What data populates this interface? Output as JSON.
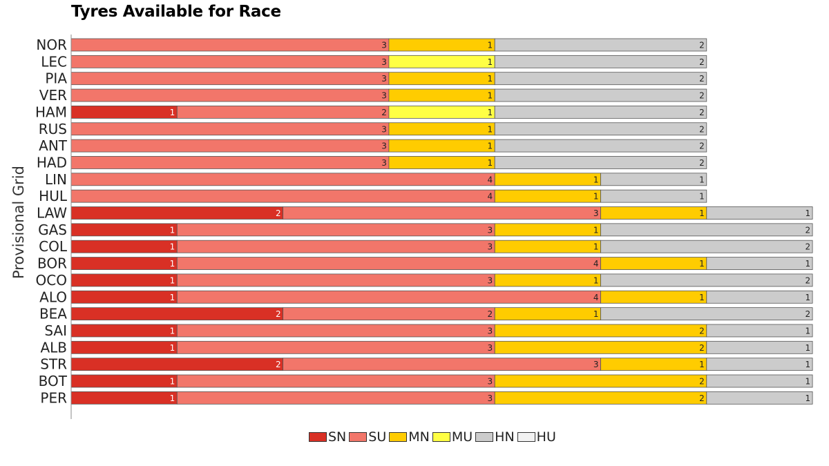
{
  "chart_data": {
    "type": "bar",
    "orientation": "horizontal",
    "stacked": true,
    "title": "Tyres Available for Race",
    "ylabel": "Provisional Grid",
    "xlabel": "",
    "categories": [
      "NOR",
      "LEC",
      "PIA",
      "VER",
      "HAM",
      "RUS",
      "ANT",
      "HAD",
      "LIN",
      "HUL",
      "LAW",
      "GAS",
      "COL",
      "BOR",
      "OCO",
      "ALO",
      "BEA",
      "SAI",
      "ALB",
      "STR",
      "BOT",
      "PER"
    ],
    "series": [
      {
        "name": "SN",
        "color": "#d93025",
        "values": [
          0,
          0,
          0,
          0,
          1,
          0,
          0,
          0,
          0,
          0,
          2,
          1,
          1,
          1,
          1,
          1,
          2,
          1,
          1,
          2,
          1,
          1
        ]
      },
      {
        "name": "SU",
        "color": "#f2766a",
        "values": [
          3,
          3,
          3,
          3,
          2,
          3,
          3,
          3,
          4,
          4,
          3,
          3,
          3,
          4,
          3,
          4,
          2,
          3,
          3,
          3,
          3,
          3
        ]
      },
      {
        "name": "MN",
        "color": "#ffcc00",
        "values": [
          1,
          0,
          1,
          1,
          0,
          1,
          1,
          1,
          1,
          1,
          1,
          1,
          1,
          1,
          1,
          1,
          1,
          2,
          2,
          1,
          2,
          2
        ]
      },
      {
        "name": "MU",
        "color": "#ffff44",
        "values": [
          0,
          1,
          0,
          0,
          1,
          0,
          0,
          0,
          0,
          0,
          0,
          0,
          0,
          0,
          0,
          0,
          0,
          0,
          0,
          0,
          0,
          0
        ]
      },
      {
        "name": "HN",
        "color": "#cccccc",
        "values": [
          2,
          2,
          2,
          2,
          2,
          2,
          2,
          2,
          1,
          1,
          1,
          2,
          2,
          1,
          2,
          1,
          2,
          1,
          1,
          1,
          1,
          1
        ]
      },
      {
        "name": "HU",
        "color": "#f2f2f2",
        "values": [
          0,
          0,
          0,
          0,
          0,
          0,
          0,
          0,
          0,
          0,
          0,
          0,
          0,
          0,
          0,
          0,
          0,
          0,
          0,
          0,
          0,
          0
        ]
      }
    ],
    "xlim": [
      0,
      7
    ],
    "grid": false,
    "legend_position": "bottom"
  }
}
